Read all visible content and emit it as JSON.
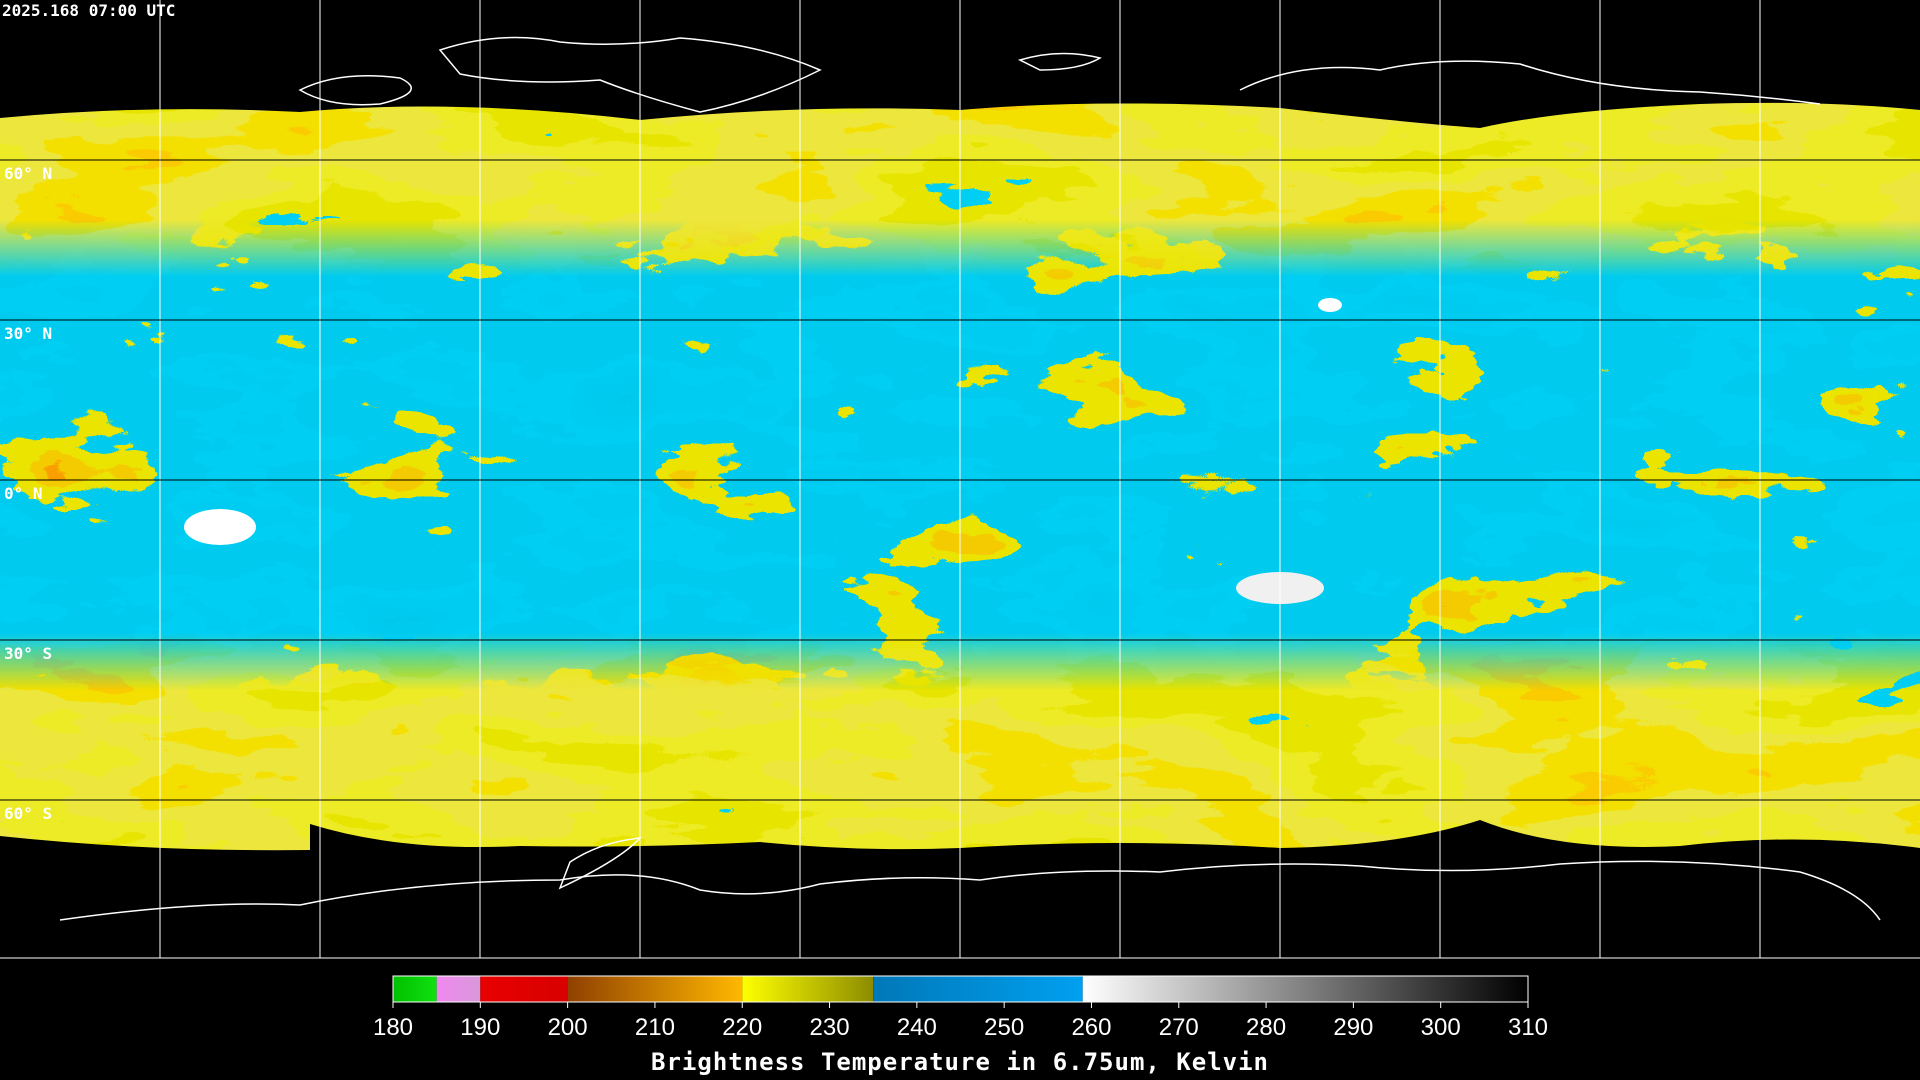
{
  "header": {
    "timestamp": "2025.168 07:00 UTC"
  },
  "map": {
    "lat_labels": [
      "60° N",
      "30° N",
      "0° N",
      "30° S",
      "60° S"
    ]
  },
  "colorbar": {
    "range": [
      180,
      310
    ],
    "ticks": [
      180,
      190,
      200,
      210,
      220,
      230,
      240,
      250,
      260,
      270,
      280,
      290,
      300,
      310
    ],
    "label": "Brightness Temperature in 6.75um, Kelvin",
    "segments": [
      {
        "from": 180,
        "to": 185,
        "colors": [
          "#00c000",
          "#10e010"
        ]
      },
      {
        "from": 185,
        "to": 190,
        "colors": [
          "#f088f0",
          "#d898d8"
        ]
      },
      {
        "from": 190,
        "to": 200,
        "colors": [
          "#e80000",
          "#d80000"
        ]
      },
      {
        "from": 200,
        "to": 220,
        "colors": [
          "#904000",
          "#ffb800"
        ]
      },
      {
        "from": 220,
        "to": 235,
        "colors": [
          "#ffff00",
          "#8c8c00"
        ]
      },
      {
        "from": 235,
        "to": 259,
        "colors": [
          "#0078b8",
          "#00a0f0"
        ]
      },
      {
        "from": 259,
        "to": 310,
        "colors": [
          "#ffffff",
          "#000000"
        ]
      }
    ]
  }
}
